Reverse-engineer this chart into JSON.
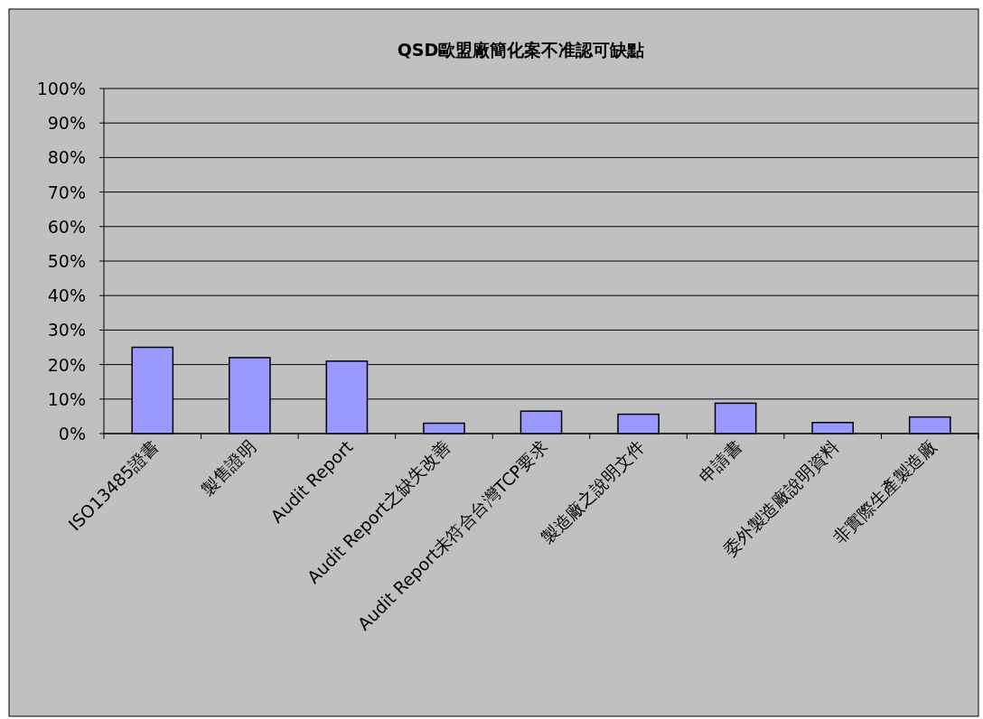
{
  "chart_data": {
    "type": "bar",
    "title": "QSD歐盟廠簡化案不准認可缺點",
    "categories": [
      "ISO13485證書",
      "製售證明",
      "Audit Report",
      "Audit Report之缺失改善",
      "Audit Report未符合台灣TCP要求",
      "製造廠之說明文件",
      "申請書",
      "委外製造廠說明資料",
      "非實際生產製造廠"
    ],
    "values": [
      25,
      22,
      21,
      3,
      6.5,
      5.6,
      8.8,
      3.2,
      4.8
    ],
    "color": "#9999ff",
    "ylim": [
      0,
      100
    ],
    "yticks": [
      {
        "value": 0,
        "label": "0%"
      },
      {
        "value": 10,
        "label": "10%"
      },
      {
        "value": 20,
        "label": "20%"
      },
      {
        "value": 30,
        "label": "30%"
      },
      {
        "value": 40,
        "label": "40%"
      },
      {
        "value": 50,
        "label": "50%"
      },
      {
        "value": 60,
        "label": "60%"
      },
      {
        "value": 70,
        "label": "70%"
      },
      {
        "value": 80,
        "label": "80%"
      },
      {
        "value": 90,
        "label": "90%"
      },
      {
        "value": 100,
        "label": "100%"
      }
    ],
    "grid": "y"
  }
}
